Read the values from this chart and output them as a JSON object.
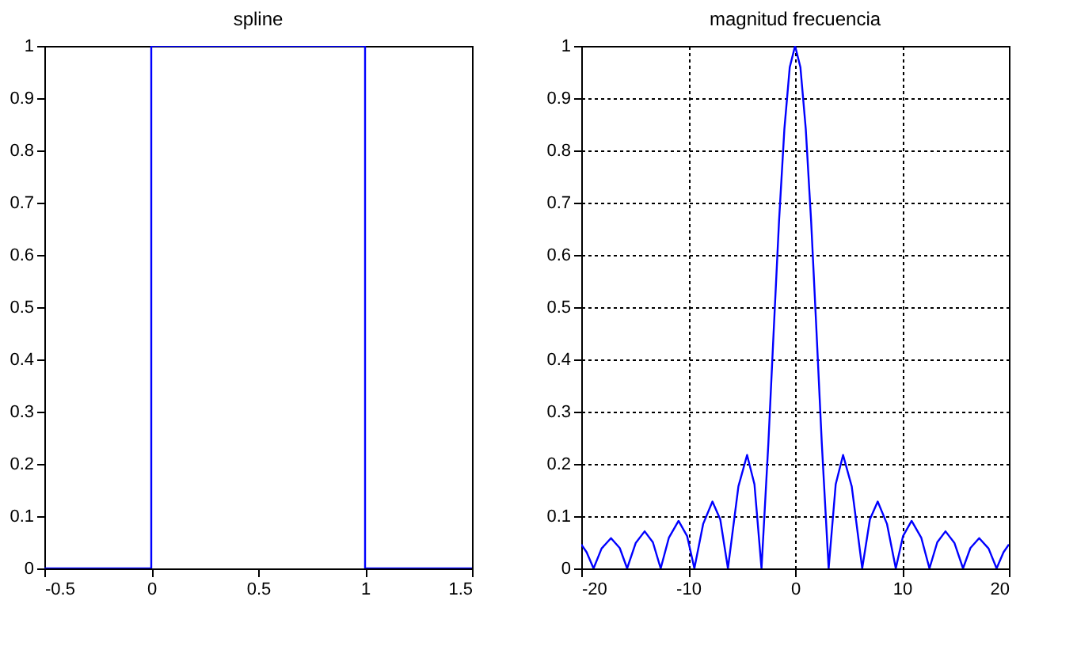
{
  "chart_data": [
    {
      "type": "line",
      "title": "spline",
      "x": [
        -0.5,
        0,
        0,
        1,
        1,
        1.5
      ],
      "series": [
        {
          "color": "#0000ff",
          "values": [
            0,
            0,
            1,
            1,
            0,
            0
          ]
        }
      ],
      "xlim": [
        -0.5,
        1.5
      ],
      "xticks": [
        -0.5,
        0,
        0.5,
        1,
        1.5
      ],
      "ylim": [
        0,
        1
      ],
      "yticks": [
        0,
        0.1,
        0.2,
        0.3,
        0.4,
        0.5,
        0.6,
        0.7,
        0.8,
        0.9,
        1
      ],
      "grid": false
    },
    {
      "type": "line",
      "title": "magnitud frecuencia",
      "x": [
        -20,
        -19.5,
        -18.85,
        -18.1,
        -17.22,
        -16.4,
        -15.71,
        -14.9,
        -14.07,
        -13.3,
        -12.57,
        -11.8,
        -10.9,
        -10.1,
        -9.42,
        -8.6,
        -7.73,
        -7,
        -6.28,
        -5.3,
        -4.49,
        -3.8,
        -3.14,
        -2.5,
        -2,
        -1.5,
        -1,
        -0.5,
        0,
        0.5,
        1,
        1.5,
        2,
        2.5,
        3.14,
        3.8,
        4.49,
        5.3,
        6.28,
        7,
        7.73,
        8.6,
        9.42,
        10.1,
        10.9,
        11.8,
        12.57,
        13.3,
        14.07,
        14.9,
        15.71,
        16.4,
        17.22,
        18.1,
        18.85,
        19.5,
        20
      ],
      "series": [
        {
          "color": "#0000ff",
          "values": [
            0.046,
            0.031,
            0,
            0.038,
            0.058,
            0.039,
            0,
            0.049,
            0.071,
            0.05,
            0,
            0.059,
            0.091,
            0.062,
            0,
            0.085,
            0.128,
            0.094,
            0,
            0.157,
            0.217,
            0.161,
            0,
            0.239,
            0.455,
            0.665,
            0.841,
            0.959,
            1,
            0.959,
            0.841,
            0.665,
            0.455,
            0.239,
            0,
            0.161,
            0.217,
            0.157,
            0,
            0.094,
            0.128,
            0.085,
            0,
            0.062,
            0.091,
            0.059,
            0,
            0.05,
            0.071,
            0.049,
            0,
            0.039,
            0.058,
            0.038,
            0,
            0.031,
            0.046
          ]
        }
      ],
      "xlim": [
        -20,
        20
      ],
      "xticks": [
        -20,
        -10,
        0,
        10,
        20
      ],
      "ylim": [
        0,
        1
      ],
      "yticks": [
        0,
        0.1,
        0.2,
        0.3,
        0.4,
        0.5,
        0.6,
        0.7,
        0.8,
        0.9,
        1
      ],
      "grid": true,
      "line_style": "solid"
    }
  ]
}
